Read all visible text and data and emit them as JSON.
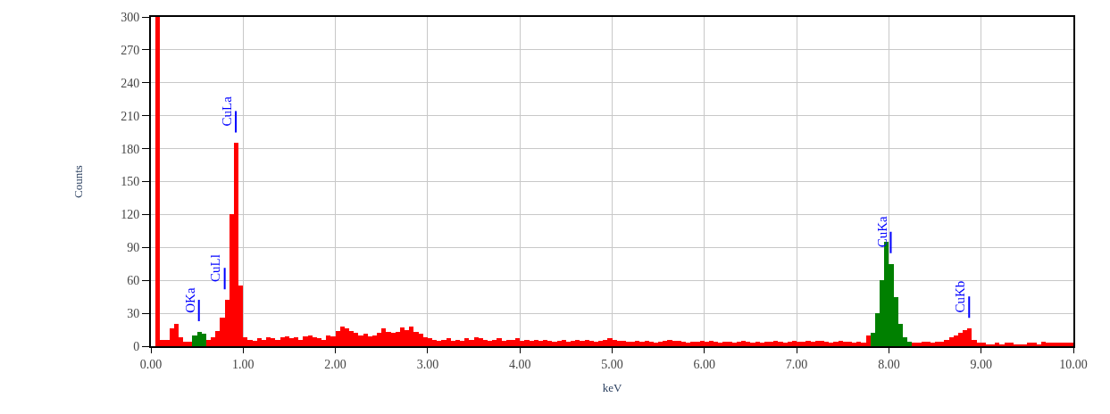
{
  "chart_data": {
    "type": "histogram",
    "xlabel": "keV",
    "ylabel": "Counts",
    "bins": [
      0.05,
      0.1,
      0.15,
      0.2,
      0.25,
      0.3,
      0.35,
      0.4,
      0.45,
      0.5,
      0.55,
      0.6,
      0.65,
      0.7,
      0.75,
      0.8,
      0.85,
      0.9,
      0.95,
      1.0,
      1.05,
      1.1,
      1.15,
      1.2,
      1.25,
      1.3,
      1.35,
      1.4,
      1.45,
      1.5,
      1.55,
      1.6,
      1.65,
      1.7,
      1.75,
      1.8,
      1.85,
      1.9,
      1.95,
      2.0,
      2.05,
      2.1,
      2.15,
      2.2,
      2.25,
      2.3,
      2.35,
      2.4,
      2.45,
      2.5,
      2.55,
      2.6,
      2.65,
      2.7,
      2.75,
      2.8,
      2.85,
      2.9,
      2.95,
      3.0,
      3.05,
      3.1,
      3.15,
      3.2,
      3.25,
      3.3,
      3.35,
      3.4,
      3.45,
      3.5,
      3.55,
      3.6,
      3.65,
      3.7,
      3.75,
      3.8,
      3.85,
      3.9,
      3.95,
      4.0,
      4.05,
      4.1,
      4.15,
      4.2,
      4.25,
      4.3,
      4.35,
      4.4,
      4.45,
      4.5,
      4.55,
      4.6,
      4.65,
      4.7,
      4.75,
      4.8,
      4.85,
      4.9,
      4.95,
      5.0,
      5.05,
      5.1,
      5.15,
      5.2,
      5.25,
      5.3,
      5.35,
      5.4,
      5.45,
      5.5,
      5.55,
      5.6,
      5.65,
      5.7,
      5.75,
      5.8,
      5.85,
      5.9,
      5.95,
      6.0,
      6.05,
      6.1,
      6.15,
      6.2,
      6.25,
      6.3,
      6.35,
      6.4,
      6.45,
      6.5,
      6.55,
      6.6,
      6.65,
      6.7,
      6.75,
      6.8,
      6.85,
      6.9,
      6.95,
      7.0,
      7.05,
      7.1,
      7.15,
      7.2,
      7.25,
      7.3,
      7.35,
      7.4,
      7.45,
      7.5,
      7.55,
      7.6,
      7.65,
      7.7,
      7.75,
      7.8,
      7.85,
      7.9,
      7.95,
      8.0,
      8.05,
      8.1,
      8.15,
      8.2,
      8.25,
      8.3,
      8.35,
      8.4,
      8.45,
      8.5,
      8.55,
      8.6,
      8.65,
      8.7,
      8.75,
      8.8,
      8.85,
      8.9,
      8.95,
      9.0,
      9.05,
      9.1,
      9.15,
      9.2,
      9.25,
      9.3,
      9.35,
      9.4,
      9.45,
      9.5,
      9.55,
      9.6,
      9.65,
      9.7,
      9.75,
      9.8,
      9.85,
      9.9,
      9.95,
      10.0
    ],
    "values": [
      300,
      6,
      6,
      16,
      20,
      8,
      4,
      4,
      10,
      13,
      11,
      6,
      8,
      14,
      26,
      42,
      120,
      185,
      55,
      8,
      6,
      5,
      7,
      6,
      8,
      7,
      6,
      8,
      9,
      7,
      8,
      6,
      9,
      10,
      8,
      7,
      6,
      10,
      9,
      14,
      18,
      16,
      14,
      12,
      10,
      11,
      9,
      10,
      12,
      16,
      13,
      12,
      13,
      17,
      15,
      18,
      13,
      11,
      8,
      7,
      6,
      5,
      6,
      7,
      5,
      6,
      5,
      7,
      6,
      8,
      7,
      6,
      5,
      6,
      7,
      5,
      6,
      6,
      7,
      5,
      6,
      5,
      6,
      5,
      6,
      5,
      4,
      5,
      6,
      4,
      5,
      6,
      5,
      6,
      5,
      4,
      5,
      6,
      7,
      6,
      5,
      5,
      4,
      4,
      5,
      4,
      5,
      4,
      3,
      4,
      5,
      6,
      5,
      5,
      4,
      3,
      4,
      4,
      5,
      4,
      5,
      4,
      3,
      4,
      4,
      3,
      4,
      5,
      4,
      3,
      4,
      3,
      4,
      4,
      5,
      4,
      3,
      4,
      5,
      4,
      4,
      5,
      4,
      5,
      5,
      4,
      3,
      4,
      5,
      4,
      4,
      3,
      4,
      3,
      10,
      12,
      30,
      60,
      95,
      75,
      45,
      20,
      8,
      4,
      3,
      3,
      4,
      4,
      3,
      4,
      4,
      6,
      8,
      10,
      12,
      15,
      16,
      6,
      3,
      3,
      2,
      2,
      3,
      2,
      3,
      3,
      2,
      1,
      2,
      3,
      3,
      1,
      4,
      3,
      3,
      3,
      3,
      3,
      3
    ],
    "colors": [
      "#ff0000",
      "#ff0000",
      "#ff0000",
      "#ff0000",
      "#ff0000",
      "#ff0000",
      "#ff0000",
      "#ff0000",
      "#008000",
      "#008000",
      "#008000",
      "#ff0000",
      "#ff0000",
      "#ff0000",
      "#ff0000",
      "#ff0000",
      "#ff0000",
      "#ff0000",
      "#ff0000",
      "#ff0000",
      "#ff0000",
      "#ff0000",
      "#ff0000",
      "#ff0000",
      "#ff0000",
      "#ff0000",
      "#ff0000",
      "#ff0000",
      "#ff0000",
      "#ff0000",
      "#ff0000",
      "#ff0000",
      "#ff0000",
      "#ff0000",
      "#ff0000",
      "#ff0000",
      "#ff0000",
      "#ff0000",
      "#ff0000",
      "#ff0000",
      "#ff0000",
      "#ff0000",
      "#ff0000",
      "#ff0000",
      "#ff0000",
      "#ff0000",
      "#ff0000",
      "#ff0000",
      "#ff0000",
      "#ff0000",
      "#ff0000",
      "#ff0000",
      "#ff0000",
      "#ff0000",
      "#ff0000",
      "#ff0000",
      "#ff0000",
      "#ff0000",
      "#ff0000",
      "#ff0000",
      "#ff0000",
      "#ff0000",
      "#ff0000",
      "#ff0000",
      "#ff0000",
      "#ff0000",
      "#ff0000",
      "#ff0000",
      "#ff0000",
      "#ff0000",
      "#ff0000",
      "#ff0000",
      "#ff0000",
      "#ff0000",
      "#ff0000",
      "#ff0000",
      "#ff0000",
      "#ff0000",
      "#ff0000",
      "#ff0000",
      "#ff0000",
      "#ff0000",
      "#ff0000",
      "#ff0000",
      "#ff0000",
      "#ff0000",
      "#ff0000",
      "#ff0000",
      "#ff0000",
      "#ff0000",
      "#ff0000",
      "#ff0000",
      "#ff0000",
      "#ff0000",
      "#ff0000",
      "#ff0000",
      "#ff0000",
      "#ff0000",
      "#ff0000",
      "#ff0000",
      "#ff0000",
      "#ff0000",
      "#ff0000",
      "#ff0000",
      "#ff0000",
      "#ff0000",
      "#ff0000",
      "#ff0000",
      "#ff0000",
      "#ff0000",
      "#ff0000",
      "#ff0000",
      "#ff0000",
      "#ff0000",
      "#ff0000",
      "#ff0000",
      "#ff0000",
      "#ff0000",
      "#ff0000",
      "#ff0000",
      "#ff0000",
      "#ff0000",
      "#ff0000",
      "#ff0000",
      "#ff0000",
      "#ff0000",
      "#ff0000",
      "#ff0000",
      "#ff0000",
      "#ff0000",
      "#ff0000",
      "#ff0000",
      "#ff0000",
      "#ff0000",
      "#ff0000",
      "#ff0000",
      "#ff0000",
      "#ff0000",
      "#ff0000",
      "#ff0000",
      "#ff0000",
      "#ff0000",
      "#ff0000",
      "#ff0000",
      "#ff0000",
      "#ff0000",
      "#ff0000",
      "#ff0000",
      "#ff0000",
      "#ff0000",
      "#ff0000",
      "#ff0000",
      "#ff0000",
      "#ff0000",
      "#ff0000",
      "#008000",
      "#008000",
      "#008000",
      "#008000",
      "#008000",
      "#008000",
      "#008000",
      "#008000",
      "#008000",
      "#ff0000",
      "#ff0000",
      "#ff0000",
      "#ff0000",
      "#ff0000",
      "#ff0000",
      "#ff0000",
      "#ff0000",
      "#ff0000",
      "#ff0000",
      "#ff0000",
      "#ff0000",
      "#ff0000",
      "#ff0000",
      "#ff0000",
      "#ff0000",
      "#ff0000",
      "#ff0000",
      "#ff0000",
      "#ff0000",
      "#ff0000",
      "#ff0000",
      "#ff0000",
      "#ff0000",
      "#ff0000",
      "#ff0000",
      "#ff0000",
      "#ff0000",
      "#ff0000",
      "#ff0000",
      "#ff0000",
      "#ff0000",
      "#ff0000",
      "#ff0000",
      "#ff0000"
    ],
    "xlim": [
      0,
      10
    ],
    "xticks": [
      {
        "value": 0,
        "label": "0.00"
      },
      {
        "value": 1,
        "label": "1.00"
      },
      {
        "value": 2,
        "label": "2.00"
      },
      {
        "value": 3,
        "label": "3.00"
      },
      {
        "value": 4,
        "label": "4.00"
      },
      {
        "value": 5,
        "label": "5.00"
      },
      {
        "value": 6,
        "label": "6.00"
      },
      {
        "value": 7,
        "label": "7.00"
      },
      {
        "value": 8,
        "label": "8.00"
      },
      {
        "value": 9,
        "label": "9.00"
      },
      {
        "value": 10,
        "label": "10.00"
      }
    ],
    "ylim": [
      0,
      300
    ],
    "yticks": [
      0,
      30,
      60,
      90,
      120,
      150,
      180,
      210,
      240,
      270,
      300
    ],
    "grid": true,
    "annotations": [
      {
        "text": "OKa",
        "x": 0.52,
        "y": 13
      },
      {
        "text": "CuLl",
        "x": 0.8,
        "y": 42
      },
      {
        "text": "CuLa",
        "x": 0.92,
        "y": 185
      },
      {
        "text": "CuKa",
        "x": 8.02,
        "y": 75
      },
      {
        "text": "CuKb",
        "x": 8.87,
        "y": 16
      }
    ]
  }
}
